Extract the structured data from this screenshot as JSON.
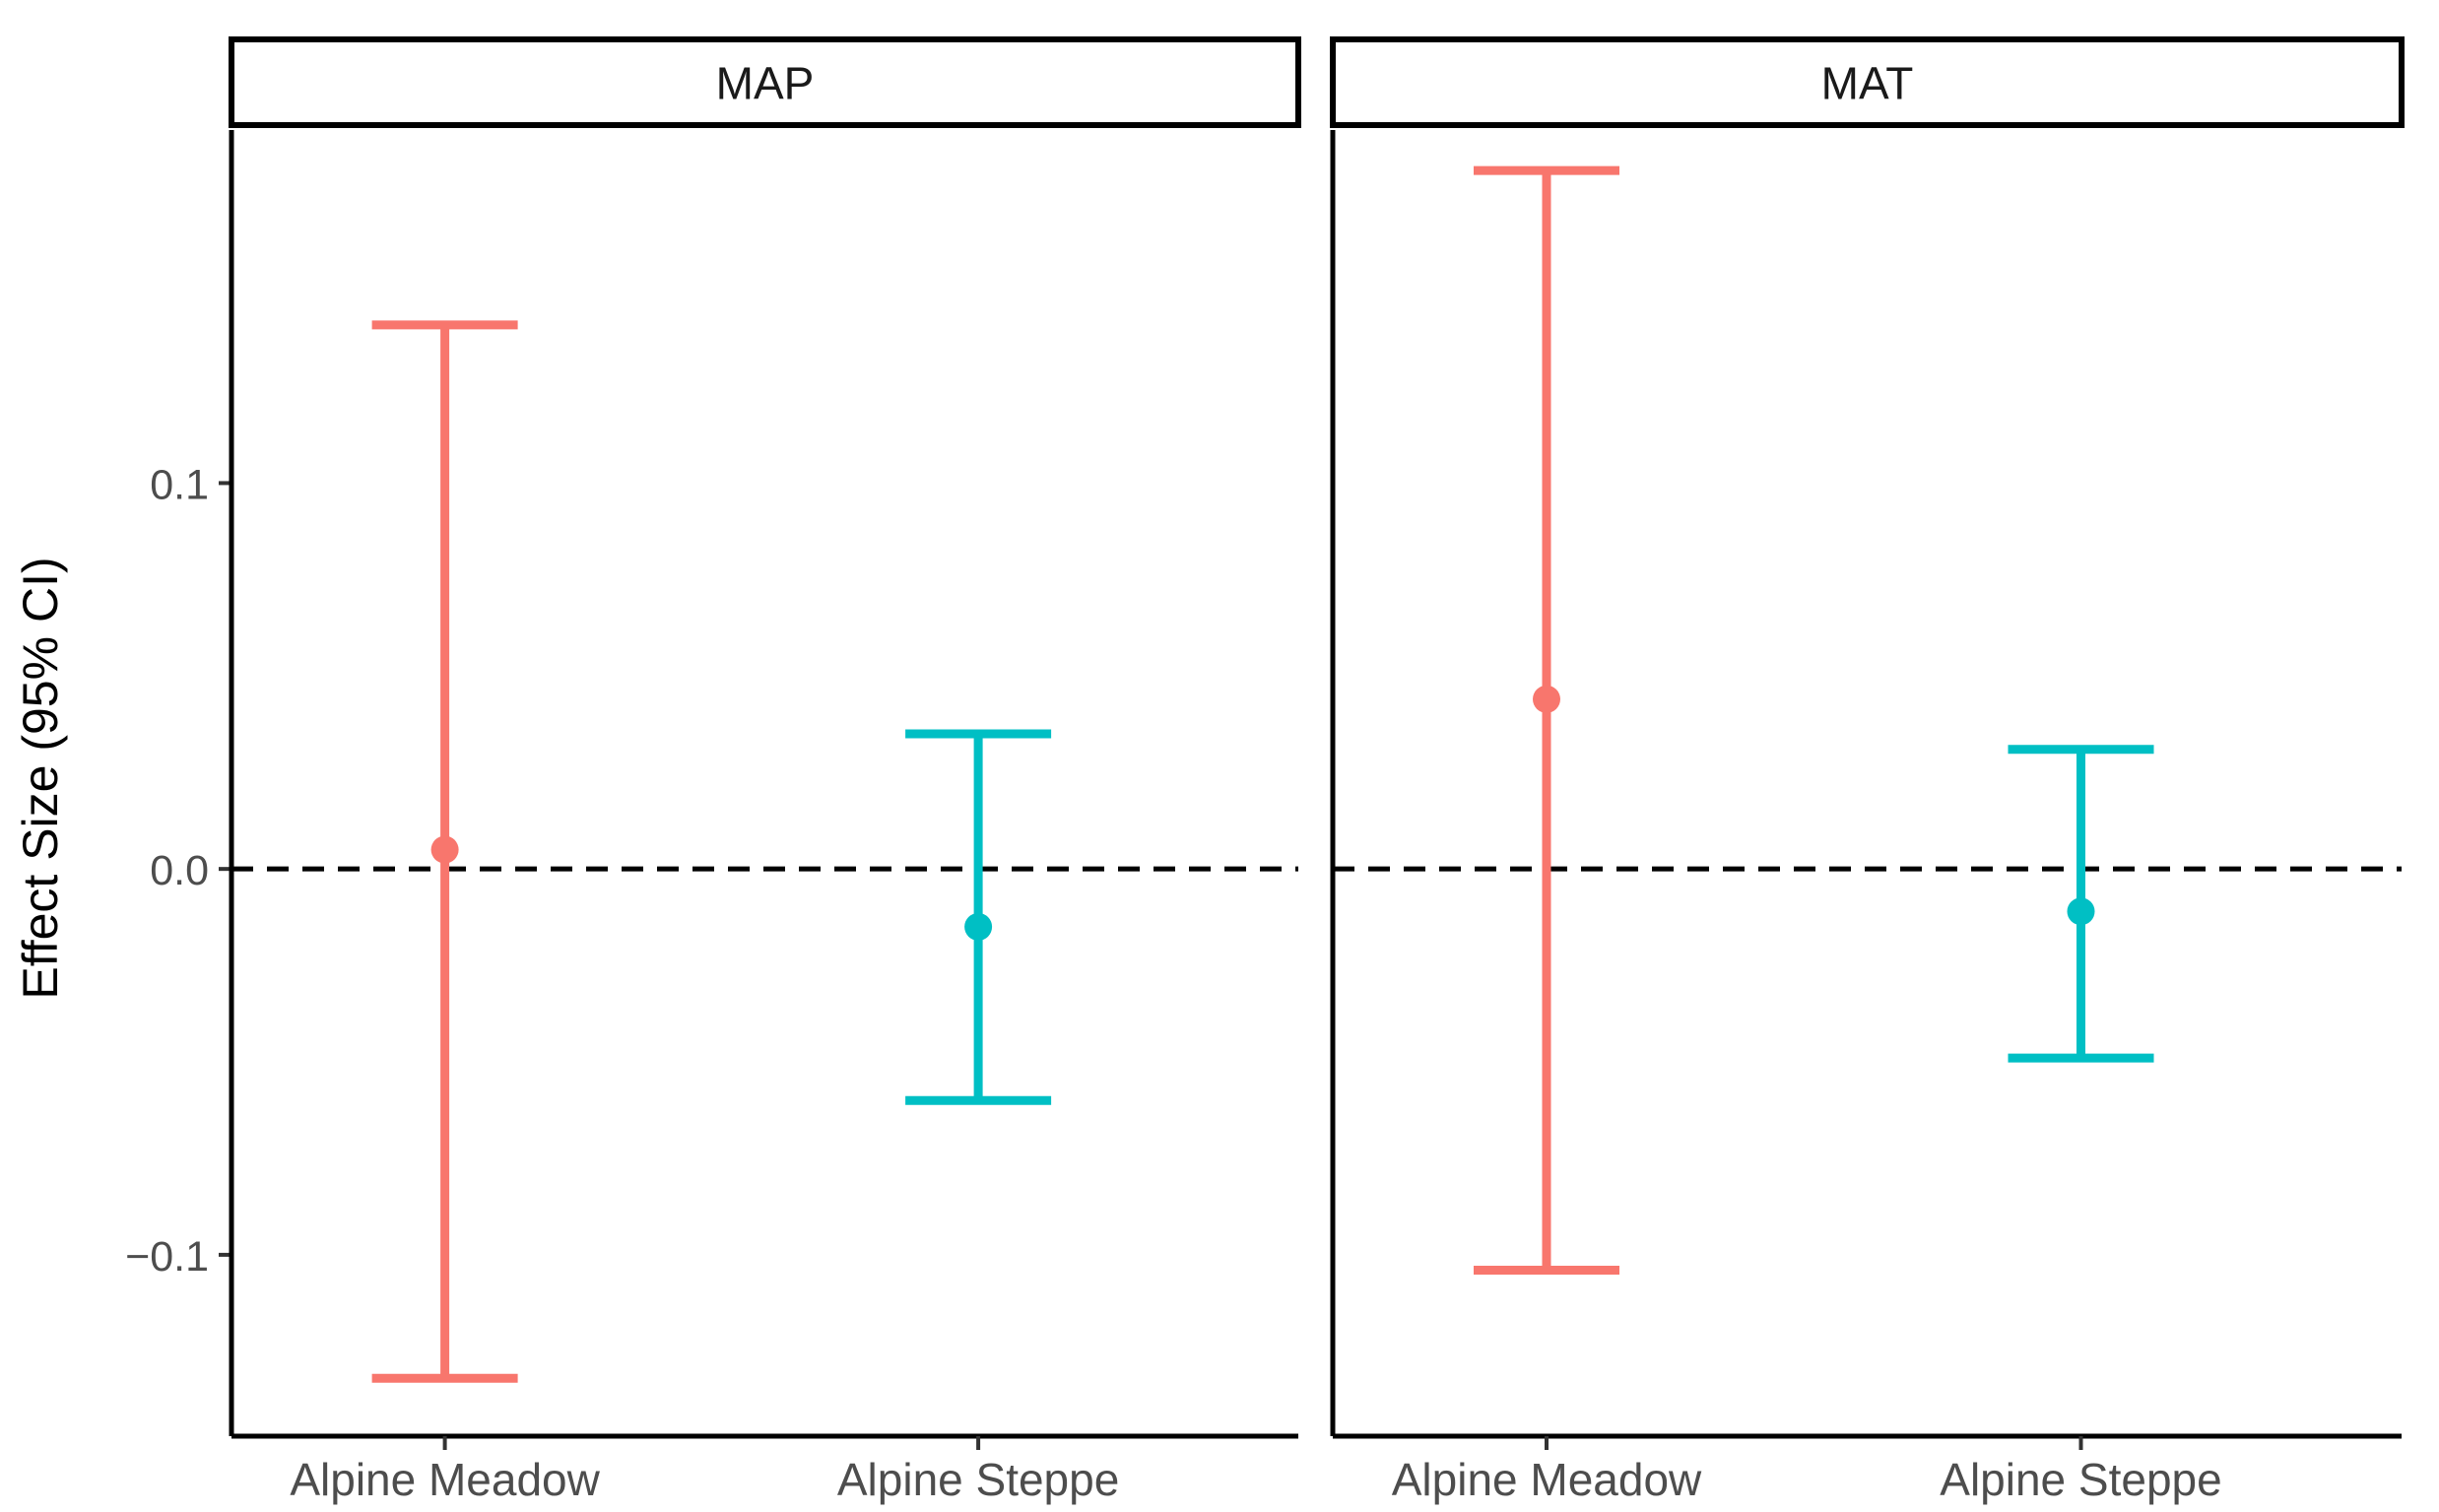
{
  "chart_data": {
    "type": "errorbar",
    "ylabel": "Effect Size (95% CI)",
    "xlabel": "",
    "ylim": [
      -0.147,
      0.1915
    ],
    "yticks": [
      -0.1,
      0.0,
      0.1
    ],
    "ytick_labels": [
      "−0.1",
      "0.0",
      "0.1"
    ],
    "reference_line": {
      "y": 0,
      "style": "dashed"
    },
    "categories": [
      "Alpine Meadow",
      "Alpine Steppe"
    ],
    "colors": {
      "Alpine Meadow": "#F8766D",
      "Alpine Steppe": "#00BFC4"
    },
    "grid": false,
    "legend": "none",
    "panels": [
      {
        "label": "MAP",
        "points": [
          {
            "category": "Alpine Meadow",
            "estimate": 0.005,
            "lower": -0.132,
            "upper": 0.141
          },
          {
            "category": "Alpine Steppe",
            "estimate": -0.015,
            "lower": -0.06,
            "upper": 0.035
          }
        ]
      },
      {
        "label": "MAT",
        "points": [
          {
            "category": "Alpine Meadow",
            "estimate": 0.044,
            "lower": -0.104,
            "upper": 0.181
          },
          {
            "category": "Alpine Steppe",
            "estimate": -0.011,
            "lower": -0.049,
            "upper": 0.031
          }
        ]
      }
    ]
  }
}
